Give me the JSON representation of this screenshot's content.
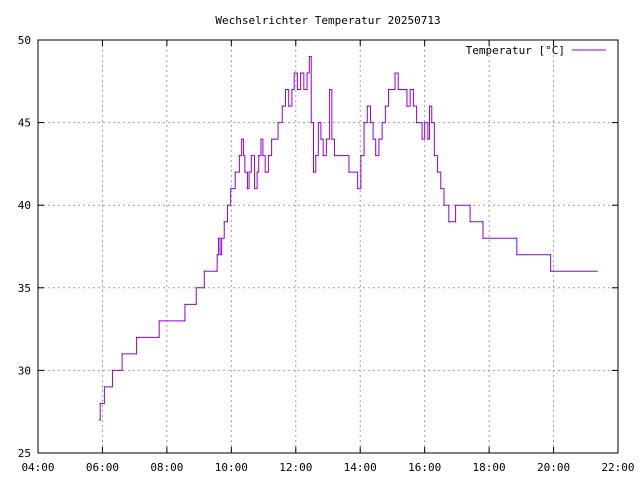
{
  "chart_data": {
    "type": "line",
    "title": "Wechselrichter Temperatur 20250713",
    "xlabel": "",
    "ylabel": "",
    "x_unit": "hours (time of day)",
    "xlim": [
      4,
      22
    ],
    "ylim": [
      25,
      50
    ],
    "grid": true,
    "legend_position": "top-right",
    "x_ticks": [
      {
        "value": 4,
        "label": "04:00"
      },
      {
        "value": 6,
        "label": "06:00"
      },
      {
        "value": 8,
        "label": "08:00"
      },
      {
        "value": 10,
        "label": "10:00"
      },
      {
        "value": 12,
        "label": "12:00"
      },
      {
        "value": 14,
        "label": "14:00"
      },
      {
        "value": 16,
        "label": "16:00"
      },
      {
        "value": 18,
        "label": "18:00"
      },
      {
        "value": 20,
        "label": "20:00"
      },
      {
        "value": 22,
        "label": "22:00"
      }
    ],
    "y_ticks": [
      {
        "value": 25,
        "label": "25"
      },
      {
        "value": 30,
        "label": "30"
      },
      {
        "value": 35,
        "label": "35"
      },
      {
        "value": 40,
        "label": "40"
      },
      {
        "value": 45,
        "label": "45"
      },
      {
        "value": 50,
        "label": "50"
      }
    ],
    "series": [
      {
        "name": "Temperatur [°C]",
        "color": "#9400d3",
        "points": [
          [
            5.9,
            27
          ],
          [
            5.93,
            28
          ],
          [
            6.05,
            28
          ],
          [
            6.06,
            29
          ],
          [
            6.3,
            29
          ],
          [
            6.31,
            30
          ],
          [
            6.6,
            30
          ],
          [
            6.61,
            31
          ],
          [
            7.05,
            31
          ],
          [
            7.06,
            32
          ],
          [
            7.75,
            32
          ],
          [
            7.76,
            33
          ],
          [
            8.55,
            33
          ],
          [
            8.56,
            34
          ],
          [
            8.9,
            34
          ],
          [
            8.91,
            35
          ],
          [
            9.15,
            35
          ],
          [
            9.16,
            36
          ],
          [
            9.55,
            36
          ],
          [
            9.56,
            37
          ],
          [
            9.6,
            38
          ],
          [
            9.65,
            37
          ],
          [
            9.7,
            38
          ],
          [
            9.78,
            39
          ],
          [
            9.88,
            40
          ],
          [
            9.98,
            41
          ],
          [
            10.12,
            42
          ],
          [
            10.25,
            43
          ],
          [
            10.32,
            44
          ],
          [
            10.38,
            43
          ],
          [
            10.42,
            42
          ],
          [
            10.5,
            41
          ],
          [
            10.55,
            42
          ],
          [
            10.62,
            43
          ],
          [
            10.72,
            41
          ],
          [
            10.8,
            42
          ],
          [
            10.85,
            43
          ],
          [
            10.92,
            44
          ],
          [
            10.98,
            43
          ],
          [
            11.05,
            42
          ],
          [
            11.15,
            43
          ],
          [
            11.25,
            44
          ],
          [
            11.35,
            44
          ],
          [
            11.45,
            45
          ],
          [
            11.58,
            46
          ],
          [
            11.68,
            47
          ],
          [
            11.78,
            46
          ],
          [
            11.88,
            47
          ],
          [
            11.95,
            48
          ],
          [
            12.05,
            47
          ],
          [
            12.15,
            48
          ],
          [
            12.25,
            47
          ],
          [
            12.35,
            48
          ],
          [
            12.42,
            49
          ],
          [
            12.48,
            45
          ],
          [
            12.55,
            42
          ],
          [
            12.62,
            43
          ],
          [
            12.7,
            45
          ],
          [
            12.78,
            44
          ],
          [
            12.85,
            43
          ],
          [
            12.95,
            44
          ],
          [
            13.05,
            47
          ],
          [
            13.12,
            44
          ],
          [
            13.2,
            43
          ],
          [
            13.35,
            43
          ],
          [
            13.5,
            43
          ],
          [
            13.65,
            42
          ],
          [
            13.8,
            42
          ],
          [
            13.92,
            41
          ],
          [
            14.02,
            43
          ],
          [
            14.12,
            45
          ],
          [
            14.22,
            46
          ],
          [
            14.32,
            45
          ],
          [
            14.4,
            44
          ],
          [
            14.48,
            43
          ],
          [
            14.58,
            44
          ],
          [
            14.68,
            45
          ],
          [
            14.78,
            46
          ],
          [
            14.88,
            47
          ],
          [
            14.98,
            47
          ],
          [
            15.08,
            48
          ],
          [
            15.18,
            47
          ],
          [
            15.3,
            47
          ],
          [
            15.45,
            46
          ],
          [
            15.55,
            47
          ],
          [
            15.65,
            46
          ],
          [
            15.75,
            45
          ],
          [
            15.85,
            45
          ],
          [
            15.92,
            44
          ],
          [
            16.0,
            45
          ],
          [
            16.1,
            44
          ],
          [
            16.15,
            46
          ],
          [
            16.22,
            45
          ],
          [
            16.3,
            43
          ],
          [
            16.4,
            42
          ],
          [
            16.5,
            41
          ],
          [
            16.6,
            40
          ],
          [
            16.75,
            39
          ],
          [
            16.95,
            39
          ],
          [
            16.96,
            40
          ],
          [
            17.4,
            40
          ],
          [
            17.41,
            39
          ],
          [
            17.8,
            39
          ],
          [
            17.81,
            38
          ],
          [
            18.85,
            38
          ],
          [
            18.86,
            37
          ],
          [
            19.9,
            37
          ],
          [
            19.91,
            36
          ],
          [
            21.35,
            36
          ]
        ]
      }
    ]
  }
}
